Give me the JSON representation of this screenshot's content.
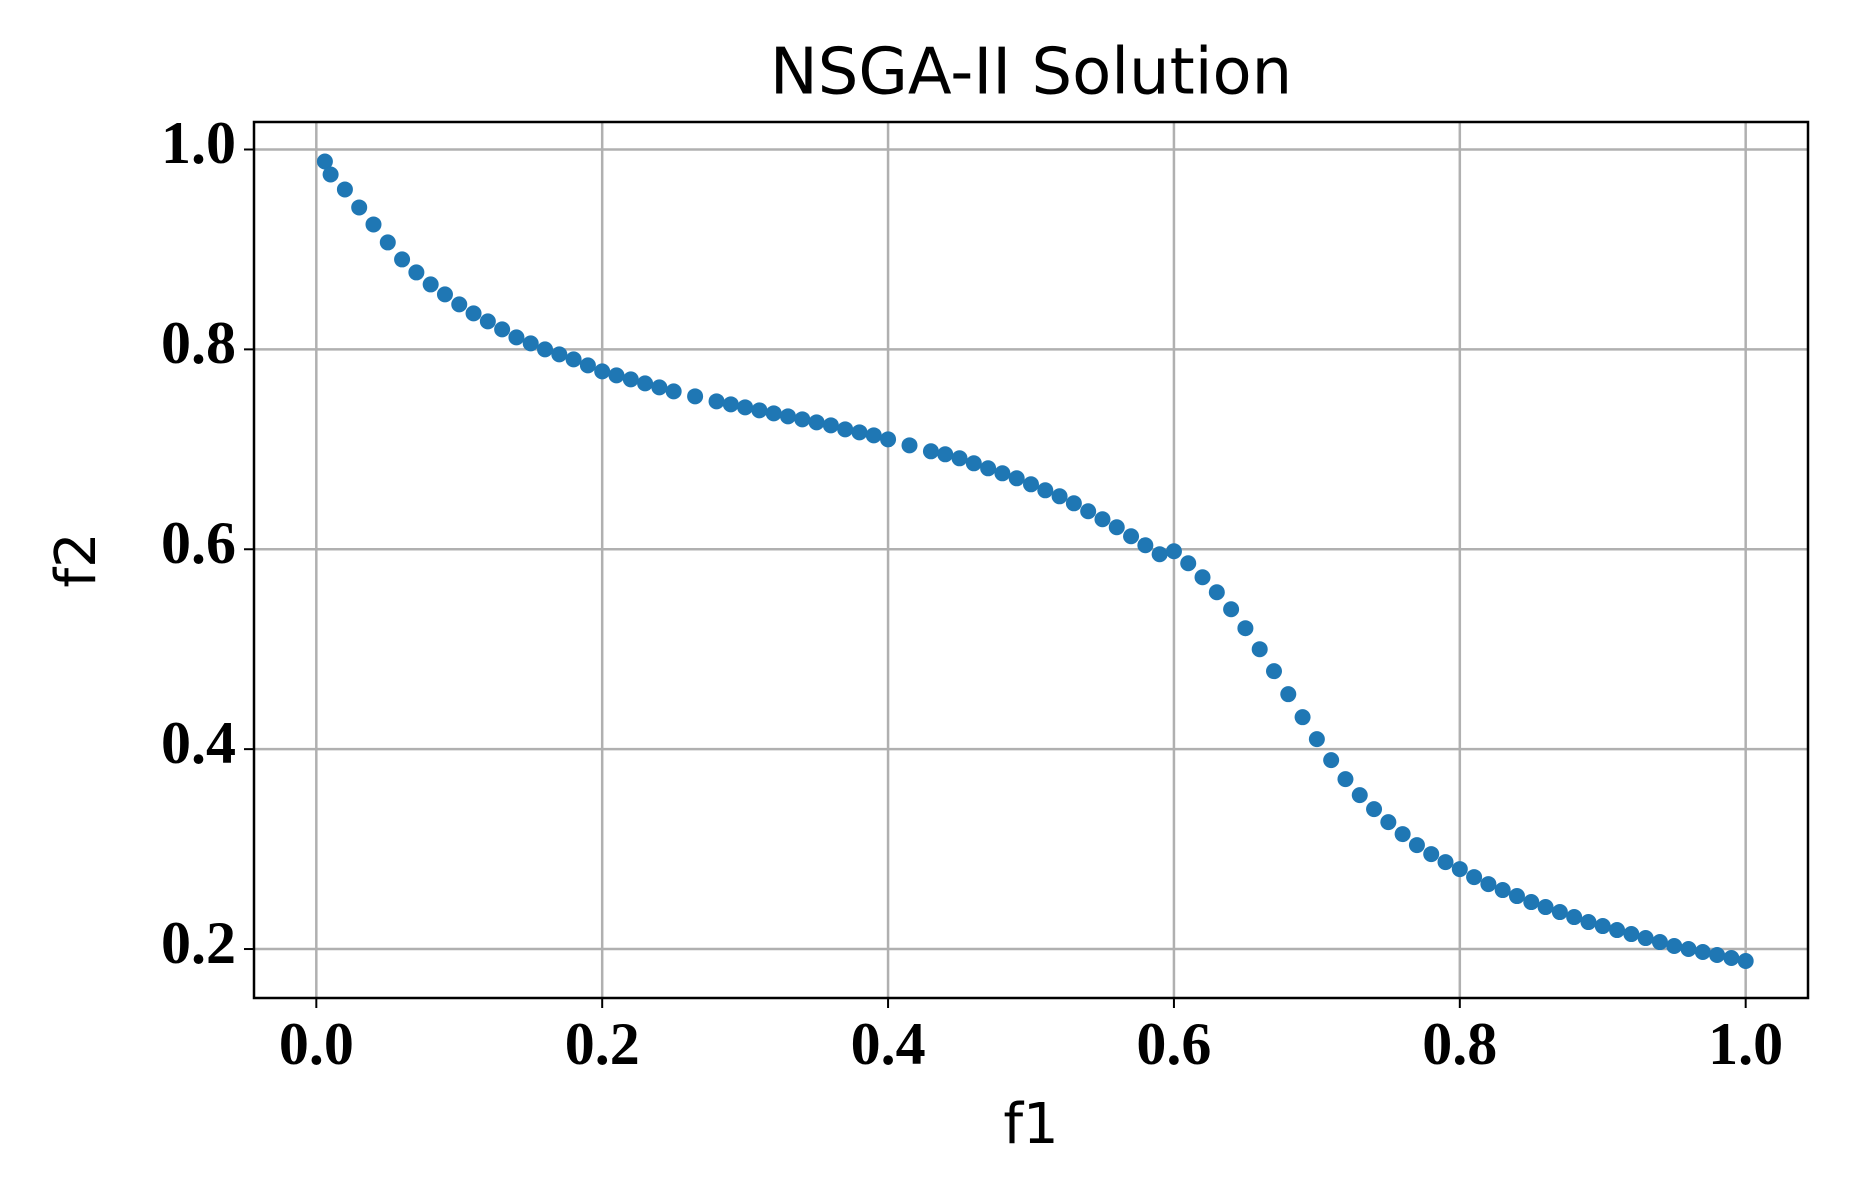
{
  "chart_data": {
    "type": "scatter",
    "title": "NSGA-II Solution",
    "x_label": "f1",
    "y_label": "f2",
    "color": "#1f77b4",
    "grid": true,
    "xlim": [
      -0.0436,
      1.0436
    ],
    "ylim": [
      0.151,
      1.0275
    ],
    "xticks": [
      {
        "value": 0,
        "label": "0.0"
      },
      0.2,
      0.4,
      0.6,
      0.8,
      {
        "value": 1,
        "label": "1.0"
      }
    ],
    "yticks": [
      0.2,
      0.4,
      0.6,
      0.8,
      {
        "value": 1,
        "label": "1.0"
      }
    ],
    "x": [
      0.006,
      0.01,
      0.02,
      0.03,
      0.04,
      0.05,
      0.06,
      0.07,
      0.08,
      0.09,
      0.1,
      0.11,
      0.12,
      0.13,
      0.14,
      0.15,
      0.16,
      0.17,
      0.18,
      0.19,
      0.2,
      0.21,
      0.22,
      0.23,
      0.24,
      0.25,
      0.265,
      0.28,
      0.29,
      0.3,
      0.31,
      0.32,
      0.33,
      0.34,
      0.35,
      0.36,
      0.37,
      0.38,
      0.39,
      0.4,
      0.415,
      0.43,
      0.44,
      0.45,
      0.46,
      0.47,
      0.48,
      0.49,
      0.5,
      0.51,
      0.52,
      0.53,
      0.54,
      0.55,
      0.56,
      0.57,
      0.58,
      0.59,
      0.6,
      0.61,
      0.62,
      0.63,
      0.64,
      0.65,
      0.66,
      0.67,
      0.68,
      0.69,
      0.7,
      0.71,
      0.72,
      0.73,
      0.74,
      0.75,
      0.76,
      0.77,
      0.78,
      0.79,
      0.8,
      0.81,
      0.82,
      0.83,
      0.84,
      0.85,
      0.86,
      0.87,
      0.88,
      0.89,
      0.9,
      0.91,
      0.92,
      0.93,
      0.94,
      0.95,
      0.96,
      0.97,
      0.98,
      0.99,
      1.0
    ],
    "values": [
      0.988,
      0.975,
      0.96,
      0.942,
      0.925,
      0.907,
      0.89,
      0.877,
      0.865,
      0.855,
      0.845,
      0.836,
      0.828,
      0.82,
      0.812,
      0.806,
      0.8,
      0.795,
      0.79,
      0.784,
      0.778,
      0.774,
      0.77,
      0.766,
      0.762,
      0.758,
      0.753,
      0.748,
      0.745,
      0.742,
      0.739,
      0.736,
      0.733,
      0.73,
      0.727,
      0.724,
      0.72,
      0.717,
      0.714,
      0.71,
      0.704,
      0.698,
      0.695,
      0.691,
      0.686,
      0.681,
      0.676,
      0.671,
      0.665,
      0.659,
      0.653,
      0.646,
      0.638,
      0.63,
      0.622,
      0.613,
      0.604,
      0.595,
      0.598,
      0.586,
      0.572,
      0.557,
      0.54,
      0.521,
      0.5,
      0.478,
      0.455,
      0.432,
      0.41,
      0.389,
      0.37,
      0.354,
      0.34,
      0.327,
      0.315,
      0.304,
      0.295,
      0.287,
      0.28,
      0.272,
      0.265,
      0.259,
      0.253,
      0.247,
      0.242,
      0.237,
      0.232,
      0.227,
      0.223,
      0.219,
      0.215,
      0.211,
      0.207,
      0.203,
      0.2,
      0.197,
      0.194,
      0.191,
      0.188
    ]
  }
}
